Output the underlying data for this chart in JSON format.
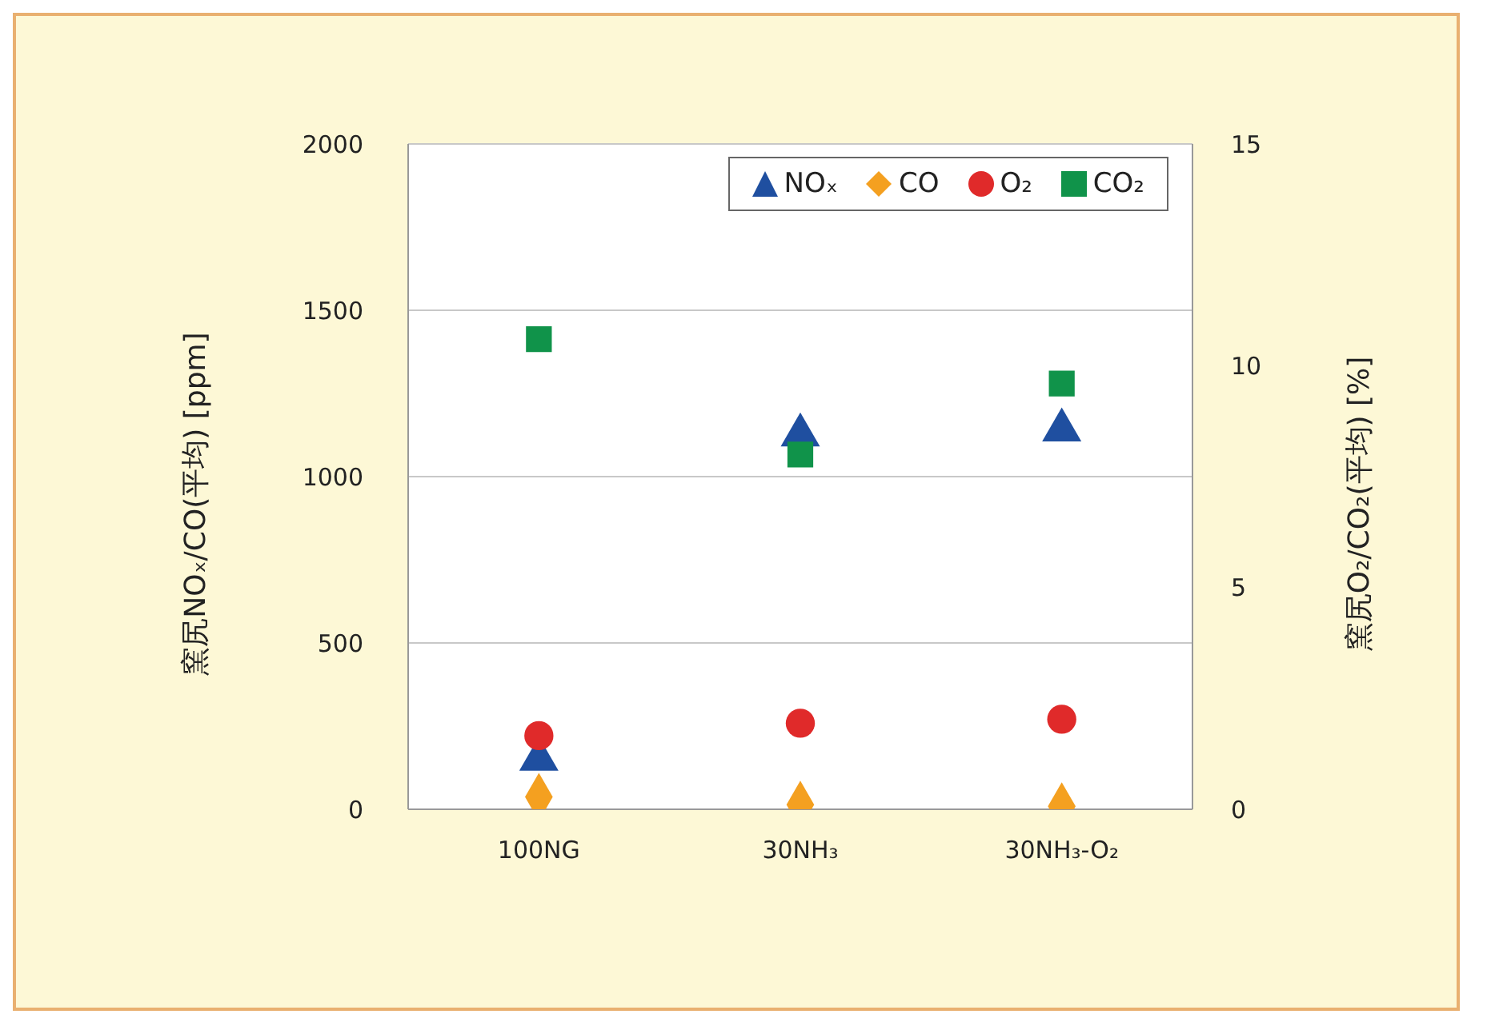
{
  "chart_data": {
    "type": "scatter",
    "xlabel": null,
    "ylabel": "窯尻NOₓ/CO(平均) [ppm]",
    "y2label": "窯尻O₂/CO₂(平均) [%]",
    "categories": [
      "100NG",
      "30NH₃",
      "30NH₃-O₂"
    ],
    "series": [
      {
        "name": "NOₓ",
        "color": "#1f4fa0",
        "marker": "triangle",
        "values": [
          150,
          1125,
          1140
        ]
      },
      {
        "name": "CO",
        "color": "#f4a020",
        "marker": "diamond",
        "values": [
          37,
          14,
          9
        ]
      },
      {
        "name": "O₂",
        "color": "#e02a2a",
        "marker": "circle",
        "axis": "y2",
        "values": [
          1.66,
          1.94,
          2.03
        ]
      },
      {
        "name": "CO₂",
        "color": "#10934a",
        "marker": "square",
        "axis": "y2",
        "values": [
          10.6,
          8.0,
          9.6
        ]
      }
    ],
    "ylim": [
      0,
      2000
    ],
    "yticks": [
      0,
      500,
      1000,
      1500,
      2000
    ],
    "y2lim": [
      0,
      15
    ],
    "y2ticks": [
      0,
      5,
      10,
      15
    ],
    "grid": "y",
    "legend": "top right"
  }
}
